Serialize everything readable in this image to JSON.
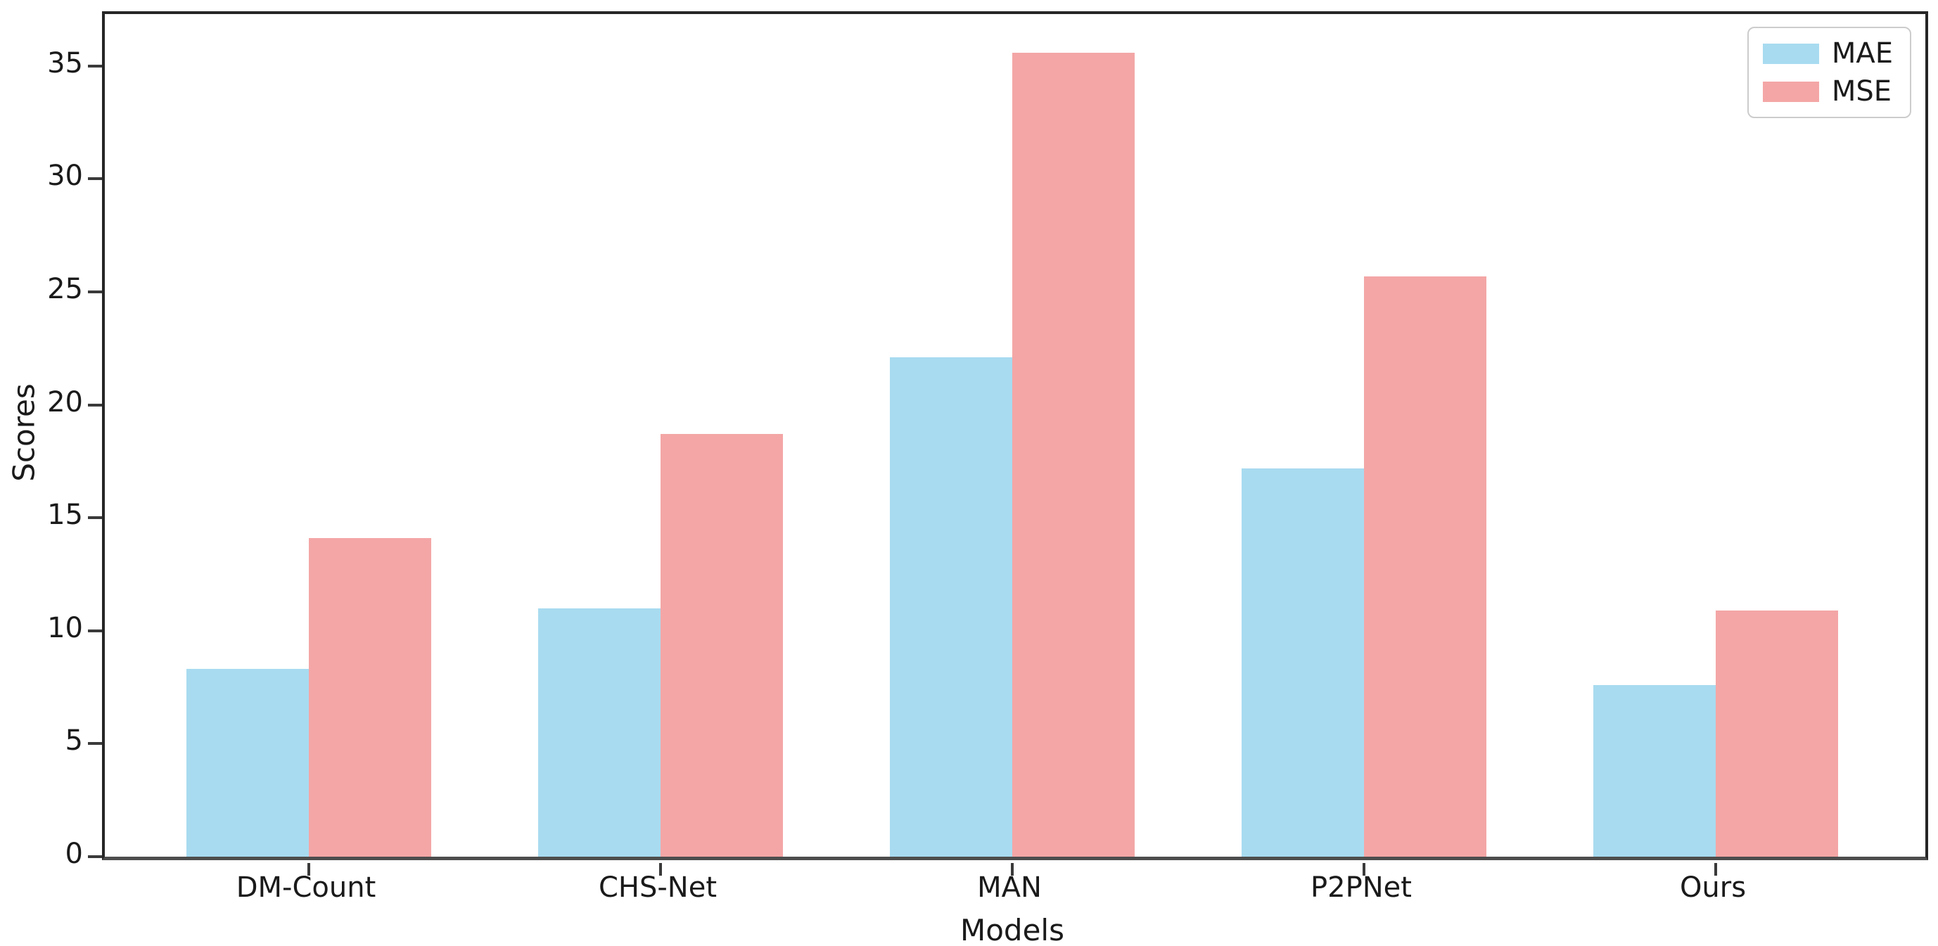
{
  "chart_data": {
    "type": "bar",
    "title": "",
    "xlabel": "Models",
    "ylabel": "Scores",
    "categories": [
      "DM-Count",
      "CHS-Net",
      "MAN",
      "P2PNet",
      "Ours"
    ],
    "series": [
      {
        "name": "MAE",
        "color": "#A8DBF0",
        "values": [
          8.3,
          11.0,
          22.1,
          17.2,
          7.6
        ]
      },
      {
        "name": "MSE",
        "color": "#F4A6A6",
        "values": [
          14.1,
          18.7,
          35.6,
          25.7,
          10.9
        ]
      }
    ],
    "yticks": [
      0,
      5,
      10,
      15,
      20,
      25,
      30,
      35
    ],
    "ylim": [
      0,
      37.3
    ],
    "grid": false,
    "legend_position": "upper right",
    "legend": [
      "MAE",
      "MSE"
    ]
  }
}
